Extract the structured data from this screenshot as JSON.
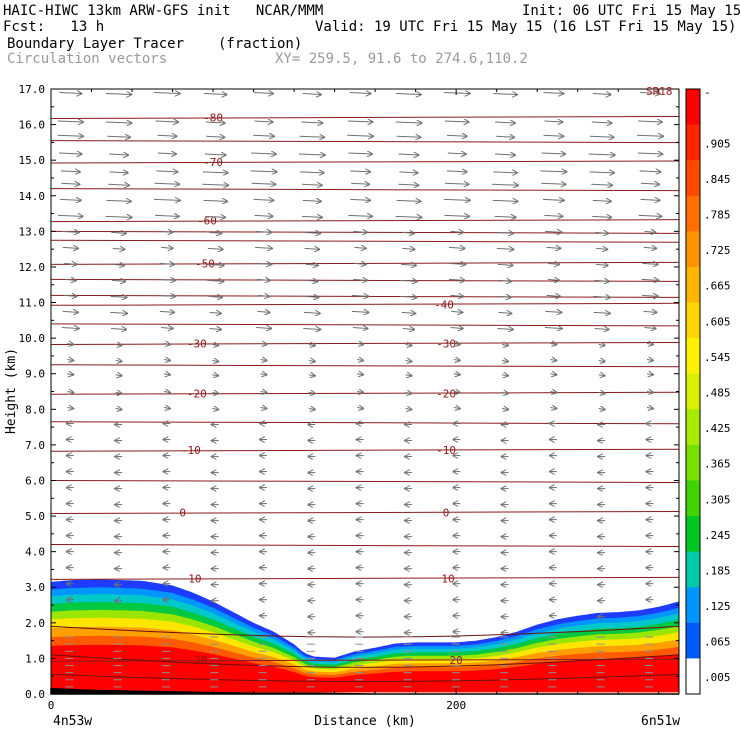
{
  "header": {
    "line1_left": "HAIC-HIWC 13km ARW-GFS init   NCAR/MMM",
    "line1_right": "Init: 06 UTC Fri 15 May 15",
    "line2_left": "Fcst:   13 h",
    "line2_right": "Valid: 19 UTC Fri 15 May 15 (16 LST Fri 15 May 15)",
    "line3_left": "Boundary Layer Tracer",
    "line3_units": "(fraction)",
    "line4_left": "Circulation vectors",
    "line4_xy": "XY= 259.5, 91.6 to 274.6,110.2"
  },
  "chart_data": {
    "type": "heatmap",
    "xlabel": "Distance (km)",
    "ylabel": "Height (km)",
    "xlim": [
      0,
      310
    ],
    "ylim": [
      0,
      17
    ],
    "x_ticks": [
      0,
      200
    ],
    "y_ticks": [
      "0.0",
      "1.0",
      "2.0",
      "3.0",
      "4.0",
      "5.0",
      "6.0",
      "7.0",
      "8.0",
      "9.0",
      "10.0",
      "11.0",
      "12.0",
      "13.0",
      "14.0",
      "15.0",
      "16.0",
      "17.0"
    ],
    "x_endpoints": {
      "left": "4n53w",
      "right": "6n51w"
    },
    "corner_label": "SR18",
    "terrain_km": [
      [
        0,
        0.15
      ],
      [
        20,
        0.1
      ],
      [
        40,
        0.08
      ],
      [
        60,
        0.06
      ],
      [
        80,
        0.04
      ],
      [
        100,
        0.02
      ],
      [
        130,
        0.02
      ],
      [
        160,
        0.0
      ],
      [
        200,
        0.0
      ],
      [
        250,
        0.0
      ],
      [
        310,
        0.0
      ]
    ],
    "tracer_top_km": [
      [
        0,
        3.15
      ],
      [
        10,
        3.2
      ],
      [
        25,
        3.22
      ],
      [
        45,
        3.18
      ],
      [
        60,
        3.05
      ],
      [
        70,
        2.85
      ],
      [
        80,
        2.6
      ],
      [
        90,
        2.3
      ],
      [
        100,
        2.0
      ],
      [
        110,
        1.75
      ],
      [
        120,
        1.4
      ],
      [
        125,
        1.15
      ],
      [
        130,
        1.05
      ],
      [
        140,
        1.02
      ],
      [
        150,
        1.2
      ],
      [
        160,
        1.3
      ],
      [
        170,
        1.42
      ],
      [
        180,
        1.45
      ],
      [
        190,
        1.45
      ],
      [
        200,
        1.45
      ],
      [
        210,
        1.5
      ],
      [
        220,
        1.6
      ],
      [
        230,
        1.75
      ],
      [
        240,
        1.95
      ],
      [
        250,
        2.1
      ],
      [
        260,
        2.2
      ],
      [
        270,
        2.28
      ],
      [
        280,
        2.3
      ],
      [
        290,
        2.35
      ],
      [
        300,
        2.45
      ],
      [
        310,
        2.6
      ]
    ],
    "tracer_bottom_km": [
      [
        0,
        0.05
      ],
      [
        40,
        0.05
      ],
      [
        100,
        0.05
      ],
      [
        150,
        0.05
      ],
      [
        200,
        0.05
      ],
      [
        250,
        0.05
      ],
      [
        310,
        0.05
      ]
    ],
    "colorbar": {
      "labels": [
        "-",
        ".905",
        ".845",
        ".785",
        ".725",
        ".665",
        ".605",
        ".545",
        ".485",
        ".425",
        ".365",
        ".305",
        ".245",
        ".185",
        ".125",
        ".065",
        ".005"
      ],
      "colors": [
        "#ff0000",
        "#ff2600",
        "#ff4a00",
        "#ff6e00",
        "#ff9200",
        "#ffb400",
        "#ffd600",
        "#fff200",
        "#d8f000",
        "#a8ea00",
        "#78e000",
        "#3fd400",
        "#00c820",
        "#00c8a8",
        "#0096ff",
        "#005aff",
        "#ffffff"
      ]
    },
    "temperature_contours": [
      {
        "label": "-80",
        "y_km": 16.2,
        "label_x": [
          80
        ]
      },
      {
        "label": "-70",
        "y_km": 14.95,
        "label_x": [
          80
        ]
      },
      {
        "label": "-60",
        "y_km": 13.3,
        "label_x": [
          77
        ]
      },
      {
        "label": "-50",
        "y_km": 12.1,
        "label_x": [
          76
        ]
      },
      {
        "label": "-40",
        "y_km": 10.95,
        "label_x": [
          194
        ]
      },
      {
        "label": "-30",
        "y_km": 9.85,
        "label_x": [
          72,
          195
        ]
      },
      {
        "label": "-20",
        "y_km": 8.45,
        "label_x": [
          72,
          195
        ]
      },
      {
        "label": "-10",
        "y_km": 6.85,
        "label_x": [
          69,
          195
        ]
      },
      {
        "label": "0",
        "y_km": 5.1,
        "label_x": [
          65,
          195
        ]
      },
      {
        "label": "10",
        "y_km": 3.25,
        "label_x": [
          71,
          196
        ]
      },
      {
        "label": "20",
        "y_km": 0.95,
        "label_x": [
          74,
          200
        ]
      }
    ],
    "extra_contour_levels_km": [
      15.55,
      14.2,
      13.0,
      12.75,
      11.65,
      11.2,
      10.4,
      9.25,
      7.65,
      6.0,
      4.2
    ],
    "vector_rows_km": [
      16.9,
      16.1,
      15.7,
      15.2,
      14.7,
      14.35,
      13.9,
      13.45,
      13.0,
      12.55,
      12.1,
      11.65,
      11.2,
      10.75,
      10.3,
      9.85,
      9.4,
      9.0,
      8.5,
      8.05,
      7.6,
      7.15,
      6.7,
      6.25,
      5.8,
      5.35,
      4.9,
      4.45,
      4.0,
      3.55,
      3.1,
      2.65,
      2.2,
      1.75
    ],
    "grid_lines": false,
    "legend": "right-colorbar"
  }
}
